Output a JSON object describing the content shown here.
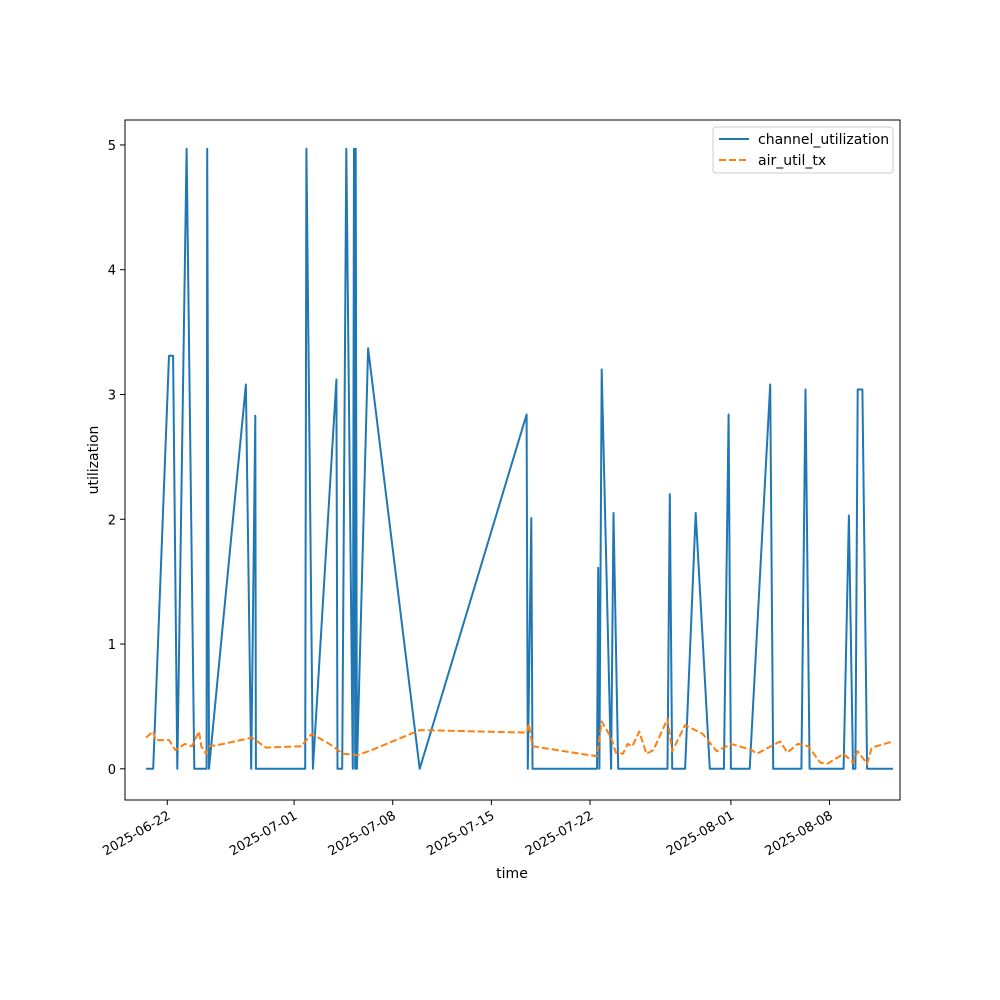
{
  "chart_data": {
    "type": "line",
    "title": "",
    "xlabel": "time",
    "ylabel": "utilization",
    "x_type": "date",
    "xlim": [
      "2025-06-19",
      "2025-08-13"
    ],
    "ylim": [
      -0.25,
      5.2
    ],
    "x_ticks": [
      "2025-06-22",
      "2025-07-01",
      "2025-07-08",
      "2025-07-15",
      "2025-07-22",
      "2025-08-01",
      "2025-08-08"
    ],
    "y_ticks": [
      0,
      1,
      2,
      3,
      4,
      5
    ],
    "y_tick_labels": [
      "0",
      "1",
      "2",
      "3",
      "4",
      "5"
    ],
    "grid": false,
    "legend_position": "top-right",
    "series": [
      {
        "name": "channel_utilization",
        "color": "#1f77b4",
        "style": "solid",
        "points": [
          [
            "2025-06-20 12:00",
            0
          ],
          [
            "2025-06-21 00:00",
            0
          ],
          [
            "2025-06-22 03:00",
            3.31
          ],
          [
            "2025-06-22 10:00",
            3.31
          ],
          [
            "2025-06-22 17:00",
            0
          ],
          [
            "2025-06-23 09:00",
            4.97
          ],
          [
            "2025-06-23 22:00",
            0
          ],
          [
            "2025-06-24 19:00",
            0
          ],
          [
            "2025-06-24 20:00",
            4.97
          ],
          [
            "2025-06-24 23:00",
            0
          ],
          [
            "2025-06-27 14:00",
            3.08
          ],
          [
            "2025-06-27 23:00",
            0
          ],
          [
            "2025-06-28 06:00",
            2.83
          ],
          [
            "2025-06-28 07:00",
            0
          ],
          [
            "2025-06-30 12:00",
            0
          ],
          [
            "2025-07-01 19:00",
            0
          ],
          [
            "2025-07-01 21:00",
            4.97
          ],
          [
            "2025-07-02 08:00",
            0
          ],
          [
            "2025-07-04 00:00",
            3.12
          ],
          [
            "2025-07-04 02:00",
            0
          ],
          [
            "2025-07-04 10:00",
            0
          ],
          [
            "2025-07-04 17:00",
            4.97
          ],
          [
            "2025-07-05 04:00",
            0
          ],
          [
            "2025-07-05 06:00",
            4.97
          ],
          [
            "2025-07-05 08:00",
            0
          ],
          [
            "2025-07-05 09:00",
            4.97
          ],
          [
            "2025-07-05 11:00",
            0
          ],
          [
            "2025-07-06 06:00",
            3.37
          ],
          [
            "2025-07-09 22:00",
            0
          ],
          [
            "2025-07-17 12:00",
            2.84
          ],
          [
            "2025-07-17 14:00",
            0
          ],
          [
            "2025-07-17 20:00",
            2.01
          ],
          [
            "2025-07-17 22:00",
            0
          ],
          [
            "2025-07-22 12:00",
            0
          ],
          [
            "2025-07-22 14:00",
            1.61
          ],
          [
            "2025-07-22 16:00",
            0
          ],
          [
            "2025-07-22 20:00",
            3.2
          ],
          [
            "2025-07-23 12:00",
            0
          ],
          [
            "2025-07-23 16:00",
            2.05
          ],
          [
            "2025-07-24 00:00",
            0
          ],
          [
            "2025-07-27 12:00",
            0
          ],
          [
            "2025-07-27 16:00",
            2.2
          ],
          [
            "2025-07-27 20:00",
            0
          ],
          [
            "2025-07-28 18:00",
            0
          ],
          [
            "2025-07-29 12:00",
            2.05
          ],
          [
            "2025-07-30 12:00",
            0
          ],
          [
            "2025-07-31 12:00",
            0
          ],
          [
            "2025-07-31 20:00",
            2.84
          ],
          [
            "2025-08-01 00:00",
            0
          ],
          [
            "2025-08-02 08:00",
            0
          ],
          [
            "2025-08-03 19:00",
            3.08
          ],
          [
            "2025-08-04 00:00",
            0
          ],
          [
            "2025-08-06 00:00",
            0
          ],
          [
            "2025-08-06 07:00",
            3.04
          ],
          [
            "2025-08-06 14:00",
            0
          ],
          [
            "2025-08-09 00:00",
            0
          ],
          [
            "2025-08-09 09:00",
            2.03
          ],
          [
            "2025-08-09 16:00",
            0
          ],
          [
            "2025-08-09 20:00",
            0
          ],
          [
            "2025-08-10 00:00",
            3.04
          ],
          [
            "2025-08-10 08:00",
            3.04
          ],
          [
            "2025-08-10 16:00",
            0
          ],
          [
            "2025-08-12 12:00",
            0
          ]
        ]
      },
      {
        "name": "air_util_tx",
        "color": "#ff7f0e",
        "style": "dashed",
        "points": [
          [
            "2025-06-20 12:00",
            0.25
          ],
          [
            "2025-06-21 00:00",
            0.3
          ],
          [
            "2025-06-21 04:00",
            0.23
          ],
          [
            "2025-06-22 03:00",
            0.23
          ],
          [
            "2025-06-22 14:00",
            0.15
          ],
          [
            "2025-06-23 06:00",
            0.2
          ],
          [
            "2025-06-23 18:00",
            0.18
          ],
          [
            "2025-06-24 06:00",
            0.3
          ],
          [
            "2025-06-24 10:00",
            0.18
          ],
          [
            "2025-06-24 18:00",
            0.12
          ],
          [
            "2025-06-25 00:00",
            0.18
          ],
          [
            "2025-06-26 00:00",
            0.2
          ],
          [
            "2025-06-28 00:00",
            0.25
          ],
          [
            "2025-06-29 00:00",
            0.17
          ],
          [
            "2025-07-01 12:00",
            0.18
          ],
          [
            "2025-07-02 06:00",
            0.28
          ],
          [
            "2025-07-03 12:00",
            0.2
          ],
          [
            "2025-07-04 12:00",
            0.12
          ],
          [
            "2025-07-05 12:00",
            0.11
          ],
          [
            "2025-07-06 12:00",
            0.15
          ],
          [
            "2025-07-09 22:00",
            0.31
          ],
          [
            "2025-07-17 12:00",
            0.29
          ],
          [
            "2025-07-17 16:00",
            0.36
          ],
          [
            "2025-07-17 22:00",
            0.18
          ],
          [
            "2025-07-22 12:00",
            0.1
          ],
          [
            "2025-07-22 20:00",
            0.38
          ],
          [
            "2025-07-23 12:00",
            0.25
          ],
          [
            "2025-07-23 20:00",
            0.13
          ],
          [
            "2025-07-24 08:00",
            0.12
          ],
          [
            "2025-07-24 16:00",
            0.2
          ],
          [
            "2025-07-25 00:00",
            0.18
          ],
          [
            "2025-07-25 12:00",
            0.3
          ],
          [
            "2025-07-26 00:00",
            0.12
          ],
          [
            "2025-07-26 12:00",
            0.15
          ],
          [
            "2025-07-27 12:00",
            0.4
          ],
          [
            "2025-07-27 20:00",
            0.14
          ],
          [
            "2025-07-28 18:00",
            0.35
          ],
          [
            "2025-07-30 00:00",
            0.28
          ],
          [
            "2025-07-31 00:00",
            0.14
          ],
          [
            "2025-08-01 00:00",
            0.2
          ],
          [
            "2025-08-02 12:00",
            0.15
          ],
          [
            "2025-08-02 20:00",
            0.12
          ],
          [
            "2025-08-04 12:00",
            0.22
          ],
          [
            "2025-08-05 00:00",
            0.13
          ],
          [
            "2025-08-05 18:00",
            0.2
          ],
          [
            "2025-08-06 12:00",
            0.18
          ],
          [
            "2025-08-07 08:00",
            0.05
          ],
          [
            "2025-08-07 20:00",
            0.04
          ],
          [
            "2025-08-09 00:00",
            0.12
          ],
          [
            "2025-08-09 16:00",
            0.05
          ],
          [
            "2025-08-10 00:00",
            0.14
          ],
          [
            "2025-08-10 16:00",
            0.04
          ],
          [
            "2025-08-11 00:00",
            0.17
          ],
          [
            "2025-08-12 12:00",
            0.22
          ]
        ]
      }
    ]
  }
}
